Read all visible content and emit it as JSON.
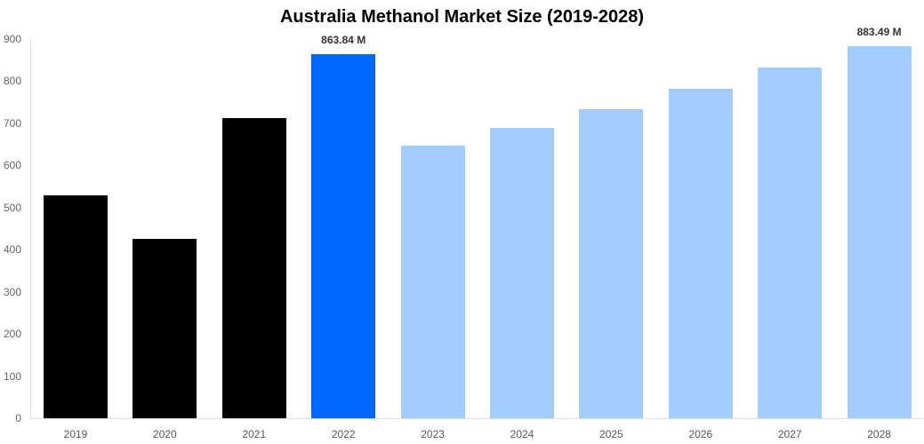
{
  "chart_data": {
    "type": "bar",
    "title": "Australia Methanol Market Size (2019-2028)",
    "xlabel": "",
    "ylabel": "",
    "ylim": [
      0,
      900
    ],
    "yticks": [
      0,
      100,
      200,
      300,
      400,
      500,
      600,
      700,
      800,
      900
    ],
    "grid": false,
    "legend": null,
    "categories": [
      "2019",
      "2020",
      "2021",
      "2022",
      "2023",
      "2024",
      "2025",
      "2026",
      "2027",
      "2028"
    ],
    "values": [
      529,
      426,
      712,
      863.84,
      647,
      689,
      733,
      782,
      833,
      883.49
    ],
    "colors": [
      "#000000",
      "#000000",
      "#000000",
      "#0066ff",
      "#a2cdfd",
      "#a2cdfd",
      "#a2cdfd",
      "#a2cdfd",
      "#a2cdfd",
      "#a2cdfd"
    ],
    "data_labels": [
      {
        "index": 3,
        "text": "863.84 M"
      },
      {
        "index": 9,
        "text": "883.49 M"
      }
    ]
  }
}
